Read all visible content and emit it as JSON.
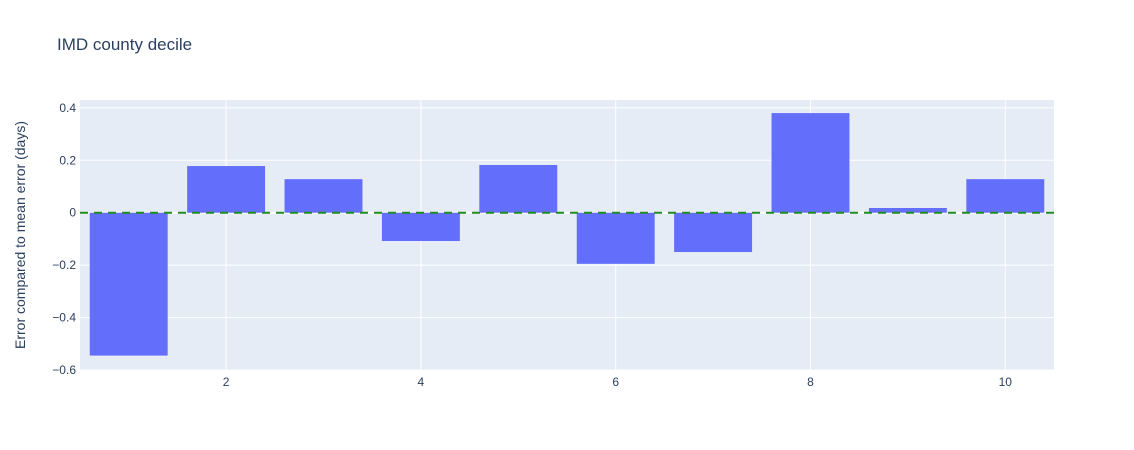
{
  "chart_data": {
    "type": "bar",
    "title": "IMD county decile",
    "ylabel": "Error compared to mean error (days)",
    "xlabel": "",
    "x": [
      1,
      2,
      3,
      4,
      5,
      6,
      7,
      8,
      9,
      10
    ],
    "values": [
      -0.545,
      0.178,
      0.128,
      -0.108,
      0.182,
      -0.195,
      -0.15,
      0.38,
      0.018,
      0.128
    ],
    "xticks": [
      2,
      4,
      6,
      8,
      10
    ],
    "xtick_labels": [
      "2",
      "4",
      "6",
      "8",
      "10"
    ],
    "yticks": [
      -0.6,
      -0.4,
      -0.2,
      0,
      0.2,
      0.4
    ],
    "ytick_labels": [
      "−0.6",
      "−0.4",
      "−0.2",
      "0",
      "0.2",
      "0.4"
    ],
    "xlim": [
      0.5,
      10.5
    ],
    "ylim": [
      -0.6,
      0.43
    ],
    "reference_line": {
      "y": 0,
      "style": "dashed",
      "color": "#228b22"
    },
    "bar_color": "#636efa",
    "plot_bg": "#e5ecf6",
    "grid": true,
    "legend": "none"
  }
}
